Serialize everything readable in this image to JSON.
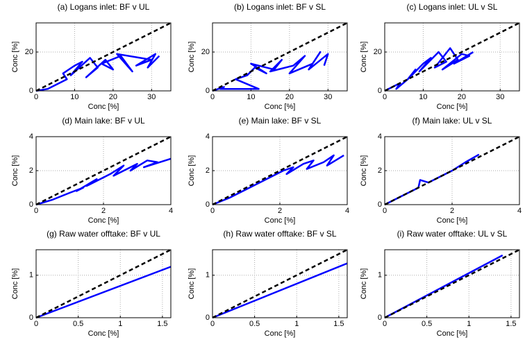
{
  "chart_data": [
    {
      "type": "line",
      "title": "(a) Logans inlet: BF v UL",
      "xlabel": "Conc [%]",
      "ylabel": "Conc [%]",
      "xlim": [
        0,
        35
      ],
      "ylim": [
        0,
        35
      ],
      "xticks": [
        0,
        10,
        20,
        30
      ],
      "yticks": [
        0,
        20
      ],
      "grid": true,
      "series": [
        {
          "color": "#0000ff",
          "x": [
            0,
            3,
            5,
            8,
            7,
            10,
            12,
            9,
            14,
            16,
            13,
            18,
            20,
            17,
            22,
            25,
            21,
            27,
            30,
            26,
            31,
            29,
            32
          ],
          "values": [
            0,
            1,
            3,
            6,
            9,
            13,
            15,
            8,
            17,
            12,
            7,
            16,
            11,
            14,
            18,
            10,
            19,
            17,
            16,
            13,
            19,
            12,
            18
          ]
        },
        {
          "color": "#000000",
          "dashed": true,
          "x": [
            0,
            35
          ],
          "values": [
            0,
            35
          ]
        }
      ]
    },
    {
      "type": "line",
      "title": "(b) Logans inlet: BF v SL",
      "xlabel": "Conc [%]",
      "ylabel": "Conc [%]",
      "xlim": [
        0,
        35
      ],
      "ylim": [
        0,
        35
      ],
      "xticks": [
        0,
        10,
        20,
        30
      ],
      "yticks": [
        0,
        20
      ],
      "grid": true,
      "series": [
        {
          "color": "#0000ff",
          "x": [
            0,
            3,
            2,
            12,
            6,
            9,
            11,
            14,
            10,
            16,
            18,
            15,
            21,
            24,
            20,
            26,
            28,
            25,
            30,
            29
          ],
          "values": [
            0,
            2,
            1,
            1,
            6,
            8,
            12,
            9,
            14,
            11,
            16,
            10,
            13,
            18,
            9,
            14,
            20,
            11,
            19,
            13
          ]
        },
        {
          "color": "#000000",
          "dashed": true,
          "x": [
            0,
            35
          ],
          "values": [
            0,
            35
          ]
        }
      ]
    },
    {
      "type": "line",
      "title": "(c) Logans inlet: UL v SL",
      "xlabel": "Conc [%]",
      "ylabel": "Conc [%]",
      "xlim": [
        0,
        35
      ],
      "ylim": [
        0,
        35
      ],
      "xticks": [
        0,
        10,
        20,
        30
      ],
      "yticks": [
        0,
        20
      ],
      "grid": true,
      "series": [
        {
          "color": "#0000ff",
          "x": [
            0,
            2,
            4,
            3,
            6,
            8,
            7,
            10,
            12,
            9,
            14,
            16,
            13,
            17,
            19,
            15,
            20,
            22,
            18,
            23
          ],
          "values": [
            0,
            2,
            4,
            1,
            6,
            11,
            8,
            14,
            17,
            10,
            20,
            15,
            12,
            22,
            16,
            11,
            19,
            18,
            14,
            20
          ]
        },
        {
          "color": "#000000",
          "dashed": true,
          "x": [
            0,
            35
          ],
          "values": [
            0,
            35
          ]
        }
      ]
    },
    {
      "type": "line",
      "title": "(d) Main lake: BF v UL",
      "xlabel": "Conc [%]",
      "ylabel": "Conc [%]",
      "xlim": [
        0,
        4
      ],
      "ylim": [
        0,
        4
      ],
      "xticks": [
        0,
        2,
        4
      ],
      "yticks": [
        0,
        2,
        4
      ],
      "grid": true,
      "series": [
        {
          "color": "#0000ff",
          "x": [
            0,
            0.5,
            1,
            1.4,
            1.2,
            1.8,
            1.5,
            2.2,
            2.6,
            2.3,
            3,
            2.8,
            3.3,
            3.6,
            3.2,
            4
          ],
          "values": [
            0,
            0.3,
            0.7,
            1.0,
            0.8,
            1.5,
            1.1,
            1.8,
            2.3,
            1.7,
            2.4,
            2.0,
            2.6,
            2.5,
            2.2,
            2.7
          ]
        },
        {
          "color": "#000000",
          "dashed": true,
          "x": [
            0,
            4
          ],
          "values": [
            0,
            4
          ]
        }
      ]
    },
    {
      "type": "line",
      "title": "(e) Main lake: BF v SL",
      "xlabel": "Conc [%]",
      "ylabel": "Conc [%]",
      "xlim": [
        0,
        4
      ],
      "ylim": [
        0,
        4
      ],
      "xticks": [
        0,
        2,
        4
      ],
      "yticks": [
        0,
        2,
        4
      ],
      "grid": true,
      "series": [
        {
          "color": "#0000ff",
          "x": [
            0,
            0.5,
            1,
            1.5,
            1.8,
            2.1,
            2.4,
            2.2,
            2.7,
            3,
            2.8,
            3.3,
            3.6,
            3.4,
            3.9
          ],
          "values": [
            0,
            0.4,
            0.9,
            1.4,
            1.7,
            2.0,
            2.2,
            1.8,
            2.4,
            2.6,
            2.1,
            2.5,
            2.9,
            2.3,
            2.9
          ]
        },
        {
          "color": "#000000",
          "dashed": true,
          "x": [
            0,
            4
          ],
          "values": [
            0,
            4
          ]
        }
      ]
    },
    {
      "type": "line",
      "title": "(f) Main lake: UL v SL",
      "xlabel": "Conc [%]",
      "ylabel": "Conc [%]",
      "xlim": [
        0,
        4
      ],
      "ylim": [
        0,
        4
      ],
      "xticks": [
        0,
        2,
        4
      ],
      "yticks": [
        0,
        2,
        4
      ],
      "grid": true,
      "series": [
        {
          "color": "#0000ff",
          "x": [
            0,
            0.5,
            0.9,
            1.0,
            1.05,
            1.3,
            1.6,
            2.0,
            2.4,
            2.8
          ],
          "values": [
            0,
            0.5,
            0.9,
            1.0,
            1.45,
            1.3,
            1.6,
            2.0,
            2.5,
            2.95
          ]
        },
        {
          "color": "#000000",
          "dashed": true,
          "x": [
            0,
            4
          ],
          "values": [
            0,
            4
          ]
        }
      ]
    },
    {
      "type": "line",
      "title": "(g) Raw water offtake: BF v UL",
      "xlabel": "Conc [%]",
      "ylabel": "Conc [%]",
      "xlim": [
        0,
        1.6
      ],
      "ylim": [
        0,
        1.6
      ],
      "xticks": [
        0,
        0.5,
        1,
        1.5
      ],
      "yticks": [
        0,
        1
      ],
      "grid": true,
      "series": [
        {
          "color": "#0000ff",
          "x": [
            0,
            1.6
          ],
          "values": [
            0,
            1.2
          ]
        },
        {
          "color": "#000000",
          "dashed": true,
          "x": [
            0,
            1.6
          ],
          "values": [
            0,
            1.6
          ]
        }
      ]
    },
    {
      "type": "line",
      "title": "(h) Raw water offtake: BF v SL",
      "xlabel": "Conc [%]",
      "ylabel": "Conc [%]",
      "xlim": [
        0,
        1.6
      ],
      "ylim": [
        0,
        1.6
      ],
      "xticks": [
        0,
        0.5,
        1,
        1.5
      ],
      "yticks": [
        0,
        1
      ],
      "grid": true,
      "series": [
        {
          "color": "#0000ff",
          "x": [
            0,
            1.6
          ],
          "values": [
            0,
            1.28
          ]
        },
        {
          "color": "#000000",
          "dashed": true,
          "x": [
            0,
            1.6
          ],
          "values": [
            0,
            1.6
          ]
        }
      ]
    },
    {
      "type": "line",
      "title": "(i) Raw water offtake: UL v SL",
      "xlabel": "Conc [%]",
      "ylabel": "Conc [%]",
      "xlim": [
        0,
        1.6
      ],
      "ylim": [
        0,
        1.6
      ],
      "xticks": [
        0,
        0.5,
        1,
        1.5
      ],
      "yticks": [
        0,
        1
      ],
      "grid": true,
      "series": [
        {
          "color": "#0000ff",
          "x": [
            0,
            1.4
          ],
          "values": [
            0,
            1.47
          ]
        },
        {
          "color": "#000000",
          "dashed": true,
          "x": [
            0,
            1.6
          ],
          "values": [
            0,
            1.6
          ]
        }
      ]
    }
  ]
}
